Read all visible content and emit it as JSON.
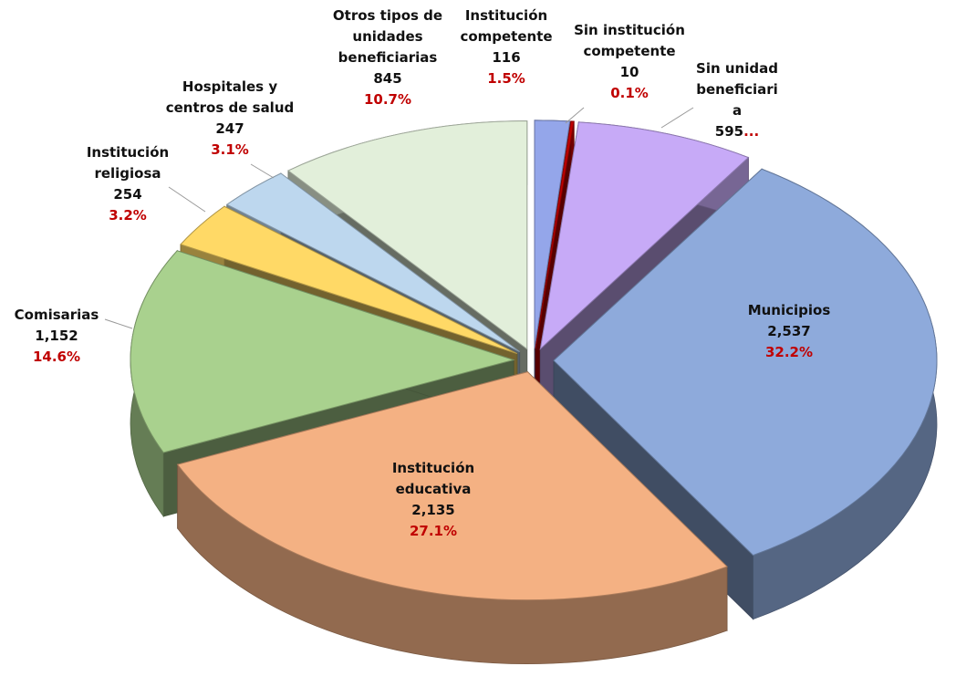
{
  "chart_data": {
    "type": "pie3d",
    "categories": [
      "Institución\ncompetente",
      "Sin institución\ncompetente",
      "Sin unidad\nbeneficiari\na",
      "Municipios",
      "Institución\neducativa",
      "Comisarias",
      "Institución\nreligiosa",
      "Hospitales y\ncentros de salud",
      "Otros tipos de\nunidades\nbeneficiarias"
    ],
    "values": [
      116,
      10,
      595,
      2537,
      2135,
      1152,
      254,
      247,
      845
    ],
    "value_labels": [
      "116",
      "10",
      "595",
      "2,537",
      "2,135",
      "1,152",
      "254",
      "247",
      "845"
    ],
    "percents": [
      1.5,
      0.1,
      null,
      32.2,
      27.1,
      14.6,
      3.2,
      3.1,
      10.7
    ],
    "percent_labels": [
      "1.5%",
      "0.1%",
      "...",
      "32.2%",
      "27.1%",
      "14.6%",
      "3.2%",
      "3.1%",
      "10.7%"
    ],
    "colors": [
      "#94a6ea",
      "#c00000",
      "#c7aaf7",
      "#8eaadb",
      "#f4b183",
      "#a9d18e",
      "#ffd966",
      "#bdd7ee",
      "#e2efda"
    ]
  }
}
